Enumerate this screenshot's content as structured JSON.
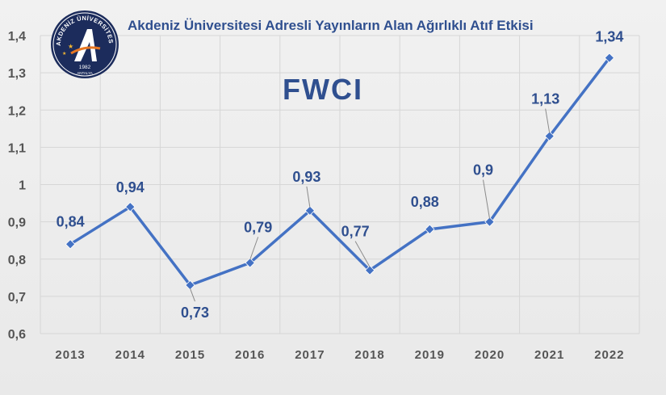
{
  "logo": {
    "arc_text": "AKDENİZ ÜNİVERSİTESİ",
    "year": "1982",
    "city": "ANTALYA"
  },
  "chart_data": {
    "type": "line",
    "title": "Akdeniz Üniversitesi Adresli Yayınların Alan Ağırlıklı Atıf Etkisi",
    "subtitle": "FWCI",
    "xlabel": "",
    "ylabel": "",
    "categories": [
      "2013",
      "2014",
      "2015",
      "2016",
      "2017",
      "2018",
      "2019",
      "2020",
      "2021",
      "2022"
    ],
    "series": [
      {
        "values": [
          0.84,
          0.94,
          0.73,
          0.79,
          0.93,
          0.77,
          0.88,
          0.9,
          1.13,
          1.34
        ],
        "labels": [
          "0,84",
          "0,94",
          "0,73",
          "0,79",
          "0,93",
          "0,77",
          "0,88",
          "0,9",
          "1,13",
          "1,34"
        ]
      }
    ],
    "ylim": [
      0.6,
      1.4
    ],
    "yticks": [
      0.6,
      0.7,
      0.8,
      0.9,
      1.0,
      1.1,
      1.2,
      1.3,
      1.4
    ],
    "ytick_labels": [
      "0,6",
      "0,7",
      "0,8",
      "0,9",
      "1",
      "1,1",
      "1,2",
      "1,3",
      "1,4"
    ],
    "grid": true,
    "legend": "none",
    "colors": {
      "line": "#4472c4",
      "text": "#2f4f8f",
      "grid": "#d6d6d6"
    }
  }
}
